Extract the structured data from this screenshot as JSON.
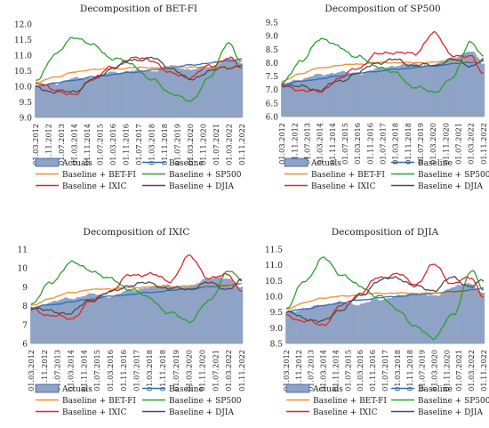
{
  "chart_data": [
    {
      "type": "line",
      "title": "Decomposition of BET-FI",
      "ylim": [
        9.0,
        12.0
      ],
      "yticks": [
        "9.0",
        "9.5",
        "10.0",
        "10.5",
        "11.0",
        "11.5",
        "12.0"
      ],
      "grid": false,
      "legend_placement": "bottom",
      "x_ticks": [
        "01.03.2012",
        "01.11.2012",
        "01.07.2013",
        "01.03.2014",
        "01.11.2014",
        "01.07.2015",
        "01.03.2016",
        "01.11.2016",
        "01.07.2017",
        "01.03.2018",
        "01.11.2018",
        "01.07.2019",
        "01.03.2020",
        "01.11.2020",
        "01.07.2021",
        "01.03.2022",
        "01.11.2022"
      ],
      "x_anchor": [
        "01.03.2012",
        "01.03.2013",
        "01.03.2014",
        "01.03.2015",
        "01.03.2016",
        "01.03.2017",
        "01.03.2018",
        "01.03.2019",
        "01.03.2020",
        "01.03.2021",
        "01.03.2022",
        "01.11.2022"
      ],
      "series": [
        {
          "name": "Actuals",
          "kind": "area",
          "color": "#8fa3c6",
          "values": [
            10.0,
            10.1,
            10.25,
            10.3,
            10.45,
            10.5,
            10.5,
            10.65,
            10.55,
            10.6,
            10.9,
            10.75
          ]
        },
        {
          "name": "Baseline",
          "color": "#2f6eba",
          "values": [
            10.0,
            10.1,
            10.2,
            10.3,
            10.38,
            10.45,
            10.52,
            10.6,
            10.68,
            10.75,
            10.82,
            10.88
          ]
        },
        {
          "name": "Baseline + BET-FI",
          "color": "#f28e2b",
          "values": [
            10.1,
            10.3,
            10.45,
            10.55,
            10.55,
            10.6,
            10.6,
            10.6,
            10.62,
            10.6,
            10.6,
            10.6
          ]
        },
        {
          "name": "Baseline + SP500",
          "color": "#2ca02c",
          "values": [
            10.2,
            11.0,
            11.6,
            11.3,
            10.9,
            10.7,
            10.2,
            9.8,
            9.5,
            10.3,
            11.4,
            10.8
          ]
        },
        {
          "name": "Baseline + IXIC",
          "color": "#e0262a",
          "values": [
            10.1,
            9.9,
            9.7,
            10.3,
            10.6,
            10.9,
            10.85,
            10.4,
            10.3,
            10.65,
            10.9,
            10.6
          ]
        },
        {
          "name": "Baseline + DJIA",
          "color": "#4d4d4d",
          "values": [
            10.0,
            9.8,
            9.85,
            10.2,
            10.6,
            10.85,
            10.9,
            10.6,
            10.2,
            10.5,
            10.6,
            10.7
          ]
        }
      ]
    },
    {
      "type": "line",
      "title": "Decomposition of SP500",
      "ylim": [
        6.0,
        9.5
      ],
      "yticks": [
        "6.0",
        "6.5",
        "7.0",
        "7.5",
        "8.0",
        "8.5",
        "9.0",
        "9.5"
      ],
      "grid": false,
      "legend_placement": "bottom",
      "x_ticks": [
        "01.03.2012",
        "01.11.2012",
        "01.07.2013",
        "01.03.2014",
        "01.11.2014",
        "01.07.2015",
        "01.03.2016",
        "01.11.2016",
        "01.07.2017",
        "01.03.2018",
        "01.11.2018",
        "01.07.2019",
        "01.03.2020",
        "01.11.2020",
        "01.07.2021",
        "01.03.2022",
        "01.11.2022"
      ],
      "x_anchor": [
        "01.03.2012",
        "01.03.2013",
        "01.03.2014",
        "01.03.2015",
        "01.03.2016",
        "01.03.2017",
        "01.03.2018",
        "01.03.2019",
        "01.03.2020",
        "01.03.2021",
        "01.03.2022",
        "01.11.2022"
      ],
      "series": [
        {
          "name": "Actuals",
          "kind": "area",
          "color": "#8fa3c6",
          "values": [
            7.2,
            7.4,
            7.55,
            7.65,
            7.6,
            7.75,
            7.9,
            7.95,
            7.9,
            8.2,
            8.4,
            8.0
          ]
        },
        {
          "name": "Baseline",
          "color": "#2f6eba",
          "values": [
            7.2,
            7.3,
            7.4,
            7.5,
            7.6,
            7.68,
            7.75,
            7.82,
            7.88,
            7.95,
            8.02,
            8.08
          ]
        },
        {
          "name": "Baseline + BET-FI",
          "color": "#f28e2b",
          "values": [
            7.3,
            7.6,
            7.8,
            7.9,
            7.95,
            8.0,
            8.0,
            8.0,
            8.02,
            8.05,
            8.05,
            8.05
          ]
        },
        {
          "name": "Baseline + SP500",
          "color": "#2ca02c",
          "values": [
            7.3,
            8.0,
            8.9,
            8.6,
            8.2,
            7.9,
            7.6,
            7.1,
            6.9,
            7.4,
            8.8,
            8.2
          ]
        },
        {
          "name": "Baseline + IXIC",
          "color": "#e0262a",
          "values": [
            7.1,
            7.0,
            6.9,
            7.4,
            7.8,
            8.3,
            8.4,
            8.3,
            9.1,
            8.3,
            8.2,
            7.6
          ]
        },
        {
          "name": "Baseline + DJIA",
          "color": "#4d4d4d",
          "values": [
            7.2,
            7.1,
            7.0,
            7.3,
            7.6,
            8.0,
            8.1,
            7.9,
            7.9,
            8.1,
            7.9,
            8.1
          ]
        }
      ]
    },
    {
      "type": "line",
      "title": "Decomposition of IXIC",
      "ylim": [
        6,
        11
      ],
      "yticks": [
        "6",
        "7",
        "8",
        "9",
        "10",
        "11"
      ],
      "grid": false,
      "legend_placement": "bottom",
      "x_ticks": [
        "01.03.2012",
        "01.11.2012",
        "01.07.2013",
        "01.03.2014",
        "01.11.2014",
        "01.07.2015",
        "01.03.2016",
        "01.11.2016",
        "01.07.2017",
        "01.03.2018",
        "01.11.2018",
        "01.07.2019",
        "01.03.2020",
        "01.11.2020",
        "01.07.2021",
        "01.03.2022",
        "01.11.2022"
      ],
      "x_anchor": [
        "01.03.2012",
        "01.03.2013",
        "01.03.2014",
        "01.03.2015",
        "01.03.2016",
        "01.03.2017",
        "01.03.2018",
        "01.03.2019",
        "01.03.2020",
        "01.03.2021",
        "01.03.2022",
        "01.11.2022"
      ],
      "series": [
        {
          "name": "Actuals",
          "kind": "area",
          "color": "#8fa3c6",
          "values": [
            7.9,
            8.2,
            8.4,
            8.6,
            8.5,
            8.8,
            9.0,
            9.1,
            9.0,
            9.5,
            9.4,
            9.0
          ]
        },
        {
          "name": "Baseline",
          "color": "#2f6eba",
          "values": [
            7.9,
            8.05,
            8.2,
            8.35,
            8.5,
            8.6,
            8.7,
            8.8,
            8.9,
            9.0,
            9.1,
            9.15
          ]
        },
        {
          "name": "Baseline + BET-FI",
          "color": "#f28e2b",
          "values": [
            8.0,
            8.4,
            8.7,
            8.85,
            8.9,
            8.95,
            9.0,
            9.0,
            9.05,
            9.1,
            9.15,
            9.2
          ]
        },
        {
          "name": "Baseline + SP500",
          "color": "#2ca02c",
          "values": [
            8.1,
            9.2,
            10.3,
            9.9,
            9.4,
            8.9,
            8.4,
            7.6,
            7.2,
            8.2,
            9.9,
            9.3
          ]
        },
        {
          "name": "Baseline + IXIC",
          "color": "#e0262a",
          "values": [
            7.8,
            7.5,
            7.3,
            8.2,
            8.8,
            9.6,
            9.7,
            9.3,
            10.6,
            9.5,
            9.6,
            8.8
          ]
        },
        {
          "name": "Baseline + DJIA",
          "color": "#4d4d4d",
          "values": [
            7.9,
            7.7,
            7.6,
            8.3,
            8.7,
            9.1,
            9.2,
            8.9,
            8.9,
            9.2,
            8.9,
            9.3
          ]
        }
      ]
    },
    {
      "type": "line",
      "title": "Decomposition of DJIA",
      "ylim": [
        8.5,
        11.5
      ],
      "yticks": [
        "8.5",
        "9.0",
        "9.5",
        "10.0",
        "10.5",
        "11.0",
        "11.5"
      ],
      "grid": false,
      "legend_placement": "bottom",
      "x_ticks": [
        "01.03.2012",
        "01.11.2012",
        "01.07.2013",
        "01.03.2014",
        "01.11.2014",
        "01.07.2015",
        "01.03.2016",
        "01.11.2016",
        "01.07.2017",
        "01.03.2018",
        "01.11.2018",
        "01.07.2019",
        "01.03.2020",
        "01.11.2020",
        "01.07.2021",
        "01.03.2022",
        "01.11.2022"
      ],
      "x_anchor": [
        "01.03.2012",
        "01.03.2013",
        "01.03.2014",
        "01.03.2015",
        "01.03.2016",
        "01.03.2017",
        "01.03.2018",
        "01.03.2019",
        "01.03.2020",
        "01.03.2021",
        "01.03.2022",
        "01.11.2022"
      ],
      "series": [
        {
          "name": "Actuals",
          "kind": "area",
          "color": "#8fa3c6",
          "values": [
            9.5,
            9.6,
            9.75,
            9.8,
            9.75,
            9.9,
            10.0,
            10.1,
            10.0,
            10.3,
            10.4,
            10.1
          ]
        },
        {
          "name": "Baseline",
          "color": "#2f6eba",
          "values": [
            9.5,
            9.6,
            9.7,
            9.8,
            9.88,
            9.95,
            10.0,
            10.05,
            10.1,
            10.15,
            10.2,
            10.25
          ]
        },
        {
          "name": "Baseline + BET-FI",
          "color": "#f28e2b",
          "values": [
            9.6,
            9.8,
            9.95,
            10.0,
            10.05,
            10.1,
            10.1,
            10.1,
            10.1,
            10.1,
            10.1,
            10.1
          ]
        },
        {
          "name": "Baseline + SP500",
          "color": "#2ca02c",
          "values": [
            9.6,
            10.5,
            11.2,
            10.7,
            10.3,
            10.0,
            9.6,
            9.0,
            8.7,
            9.4,
            10.8,
            10.2
          ]
        },
        {
          "name": "Baseline + IXIC",
          "color": "#e0262a",
          "values": [
            9.4,
            9.2,
            9.1,
            9.7,
            10.1,
            10.6,
            10.7,
            10.4,
            11.0,
            10.4,
            10.6,
            10.0
          ]
        },
        {
          "name": "Baseline + DJIA",
          "color": "#4d4d4d",
          "values": [
            9.5,
            9.3,
            9.2,
            9.6,
            10.0,
            10.5,
            10.6,
            10.3,
            10.2,
            10.6,
            10.3,
            10.5
          ]
        }
      ]
    }
  ]
}
